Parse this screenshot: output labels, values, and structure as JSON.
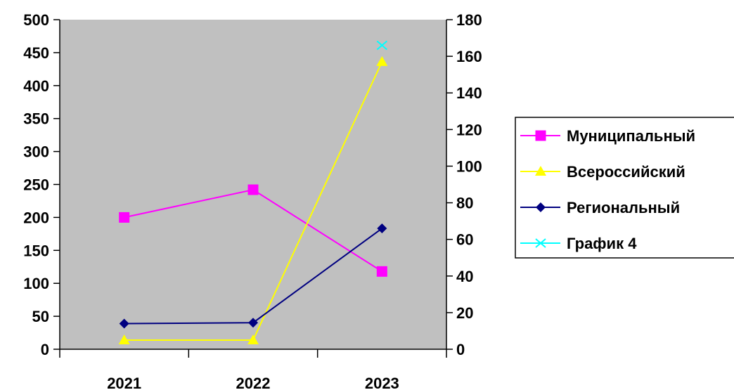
{
  "chart_data": {
    "type": "line",
    "categories": [
      "2021",
      "2022",
      "2023"
    ],
    "y_left": {
      "ticks": [
        0,
        50,
        100,
        150,
        200,
        250,
        300,
        350,
        400,
        450,
        500
      ],
      "ylim": [
        0,
        500
      ]
    },
    "y_right": {
      "ticks": [
        0,
        20,
        40,
        60,
        80,
        100,
        120,
        140,
        160,
        180
      ],
      "ylim": [
        0,
        180
      ]
    },
    "series": [
      {
        "name": "Муниципальный",
        "axis": "left",
        "marker": "square",
        "color": "#FF00FF",
        "values": [
          200,
          242,
          118
        ]
      },
      {
        "name": "Всероссийский",
        "axis": "right",
        "marker": "triangle",
        "color": "#FFFF00",
        "values": [
          5,
          5,
          157
        ]
      },
      {
        "name": "Региональный",
        "axis": "right",
        "marker": "diamond",
        "color": "#000080",
        "values": [
          14,
          14.5,
          66
        ]
      },
      {
        "name": "График 4",
        "axis": "right",
        "marker": "x",
        "color": "#00FFFF",
        "values": [
          null,
          null,
          166
        ]
      }
    ],
    "plot_background": "#C0C0C0",
    "grid": false,
    "legend_position": "right"
  }
}
